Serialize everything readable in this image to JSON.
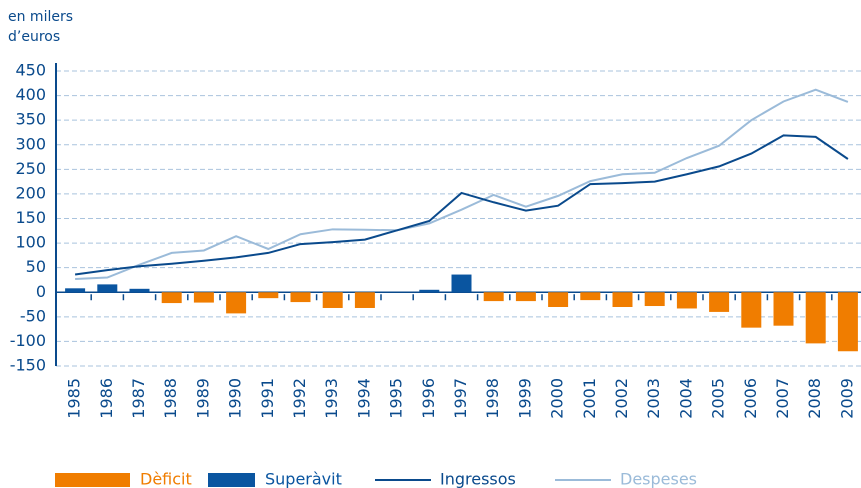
{
  "chart_data": {
    "type": "combo",
    "y_label": [
      "en milers",
      "d’euros"
    ],
    "categories": [
      "1985",
      "1986",
      "1987",
      "1988",
      "1989",
      "1990",
      "1991",
      "1992",
      "1993",
      "1994",
      "1995",
      "1996",
      "1997",
      "1998",
      "1999",
      "2000",
      "2001",
      "2002",
      "2003",
      "2004",
      "2005",
      "2006",
      "2007",
      "2008",
      "2009"
    ],
    "series": [
      {
        "name": "Dèficit",
        "type": "bar",
        "color": "#f07d00",
        "values": [
          null,
          null,
          null,
          -22,
          -21,
          -43,
          -12,
          -20,
          -32,
          -32,
          null,
          null,
          null,
          -18,
          -18,
          -30,
          -16,
          -30,
          -28,
          -33,
          -40,
          -72,
          -68,
          -104,
          -120
        ]
      },
      {
        "name": "Superàvit",
        "type": "bar",
        "color": "#0a55a0",
        "values": [
          8,
          16,
          7,
          null,
          null,
          null,
          null,
          null,
          null,
          null,
          null,
          5,
          36,
          null,
          null,
          null,
          null,
          null,
          null,
          null,
          null,
          null,
          null,
          null,
          null
        ]
      },
      {
        "name": "Ingressos",
        "type": "line",
        "color": "#0a4a8c",
        "values": [
          36,
          45,
          53,
          58,
          64,
          71,
          80,
          98,
          102,
          107,
          126,
          145,
          202,
          183,
          166,
          176,
          220,
          222,
          225,
          240,
          256,
          282,
          319,
          316,
          271
        ]
      },
      {
        "name": "Despeses",
        "type": "line",
        "color": "#9bbbd9",
        "values": [
          27,
          30,
          56,
          80,
          85,
          114,
          88,
          118,
          128,
          127,
          126,
          140,
          168,
          198,
          174,
          196,
          226,
          240,
          243,
          273,
          298,
          350,
          388,
          412,
          387
        ]
      }
    ],
    "ylim": [
      -150,
      450
    ],
    "yticks": [
      -150,
      -100,
      -50,
      0,
      50,
      100,
      150,
      200,
      250,
      300,
      350,
      400,
      450
    ],
    "grid": true
  }
}
